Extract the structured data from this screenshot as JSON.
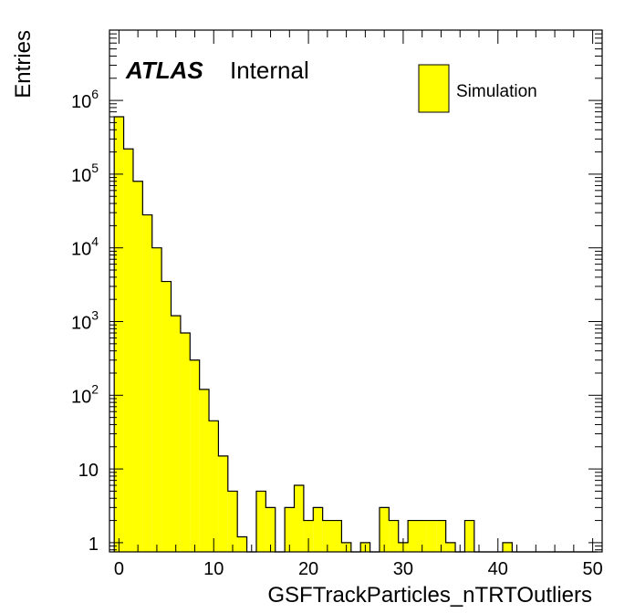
{
  "chart_data": {
    "type": "bar",
    "xlabel": "GSFTrackParticles_nTRTOutliers",
    "ylabel": "Entries",
    "atlas_label": "ATLAS",
    "atlas_tag": "Internal",
    "legend": [
      {
        "name": "Simulation",
        "color": "#ffff00"
      }
    ],
    "legend_placement": "top-right",
    "y_scale": "log",
    "xlim": [
      -1,
      51
    ],
    "ylim": [
      0.75,
      9000000
    ],
    "bin_width": 1,
    "x_ticks": [
      0,
      10,
      20,
      30,
      40,
      50
    ],
    "x_tick_labels": [
      "0",
      "10",
      "20",
      "30",
      "40",
      "50"
    ],
    "y_ticks": [
      1,
      10,
      100,
      1000,
      10000,
      100000,
      1000000
    ],
    "y_tick_labels": [
      {
        "base": "1",
        "exp": ""
      },
      {
        "base": "10",
        "exp": ""
      },
      {
        "base": "10",
        "exp": "2"
      },
      {
        "base": "10",
        "exp": "3"
      },
      {
        "base": "10",
        "exp": "4"
      },
      {
        "base": "10",
        "exp": "5"
      },
      {
        "base": "10",
        "exp": "6"
      }
    ],
    "bin_low_edges": [
      -0.5,
      0.5,
      1.5,
      2.5,
      3.5,
      4.5,
      5.5,
      6.5,
      7.5,
      8.5,
      9.5,
      10.5,
      11.5,
      12.5,
      13.5,
      14.5,
      15.5,
      16.5,
      17.5,
      18.5,
      19.5,
      20.5,
      21.5,
      22.5,
      23.5,
      24.5,
      25.5,
      26.5,
      27.5,
      28.5,
      29.5,
      30.5,
      31.5,
      32.5,
      33.5,
      34.5,
      35.5,
      36.5,
      37.5,
      38.5,
      39.5,
      40.5,
      41.5,
      42.5,
      43.5,
      44.5,
      45.5,
      46.5,
      47.5,
      48.5,
      49.5
    ],
    "values": [
      600000,
      220000,
      80000,
      28000,
      10000,
      3500,
      1200,
      700,
      300,
      120,
      45,
      15,
      5,
      1.2,
      0,
      5,
      3,
      0,
      3,
      6,
      2,
      3,
      2,
      2,
      1,
      0,
      1,
      0,
      3,
      2,
      1,
      2,
      2,
      2,
      2,
      1,
      0,
      2,
      0,
      0,
      0,
      1,
      0,
      0,
      0,
      0,
      0,
      0,
      0,
      0,
      0
    ],
    "fill_color": "#ffff00",
    "line_color": "#000000"
  }
}
